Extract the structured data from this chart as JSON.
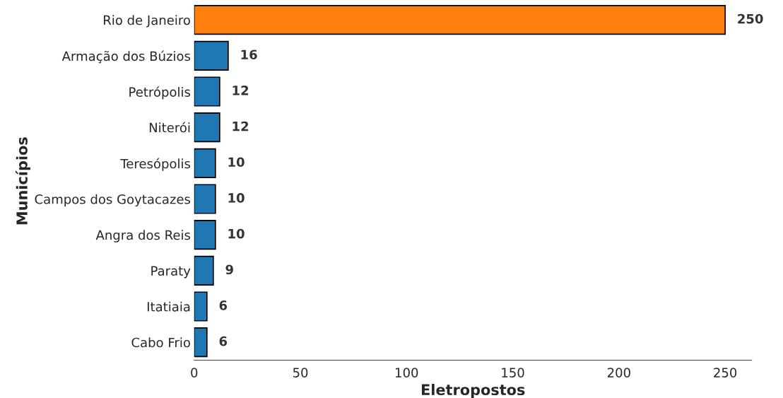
{
  "chart_data": {
    "type": "bar",
    "orientation": "horizontal",
    "xlabel": "Eletropostos",
    "ylabel": "Municípios",
    "categories": [
      "Rio de Janeiro",
      "Armação dos Búzios",
      "Petrópolis",
      "Niterói",
      "Teresópolis",
      "Campos dos Goytacazes",
      "Angra dos Reis",
      "Paraty",
      "Itatiaia",
      "Cabo Frio"
    ],
    "values": [
      250,
      16,
      12,
      12,
      10,
      10,
      10,
      9,
      6,
      6
    ],
    "colors": [
      "#ff7f0e",
      "#1f77b4",
      "#1f77b4",
      "#1f77b4",
      "#1f77b4",
      "#1f77b4",
      "#1f77b4",
      "#1f77b4",
      "#1f77b4",
      "#1f77b4"
    ],
    "xlim": [
      0,
      262.5
    ],
    "xticks": [
      0,
      50,
      100,
      150,
      200,
      250
    ],
    "data_labels": true,
    "grid": false,
    "legend": false
  }
}
